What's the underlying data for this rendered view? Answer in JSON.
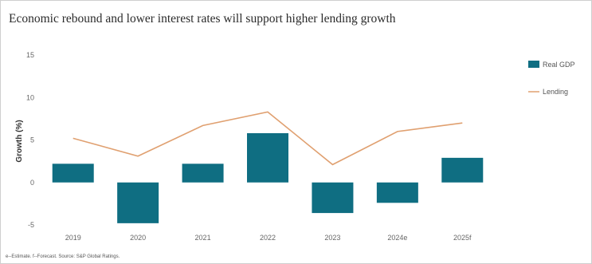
{
  "chart_data": {
    "type": "bar",
    "title": "Economic rebound and lower interest rates will support higher lending growth",
    "ylabel": "Growth (%)",
    "xlabel": "",
    "categories": [
      "2019",
      "2020",
      "2021",
      "2022",
      "2023",
      "2024e",
      "2025f"
    ],
    "ylim": [
      -5,
      15
    ],
    "yticks": [
      15,
      10,
      5,
      0,
      -5
    ],
    "grid": false,
    "legend_position": "right",
    "series": [
      {
        "name": "Real GDP",
        "kind": "bar",
        "color": "#0f6e82",
        "values": [
          2.2,
          -4.8,
          2.2,
          5.8,
          -3.6,
          -2.4,
          2.9
        ]
      },
      {
        "name": "Lending",
        "kind": "line",
        "color": "#e0a070",
        "values": [
          5.2,
          3.1,
          6.7,
          8.3,
          2.1,
          6.0,
          7.0
        ]
      }
    ],
    "footnote": "e--Estimate. f--Forecast. Source: S&P Global Ratings."
  }
}
